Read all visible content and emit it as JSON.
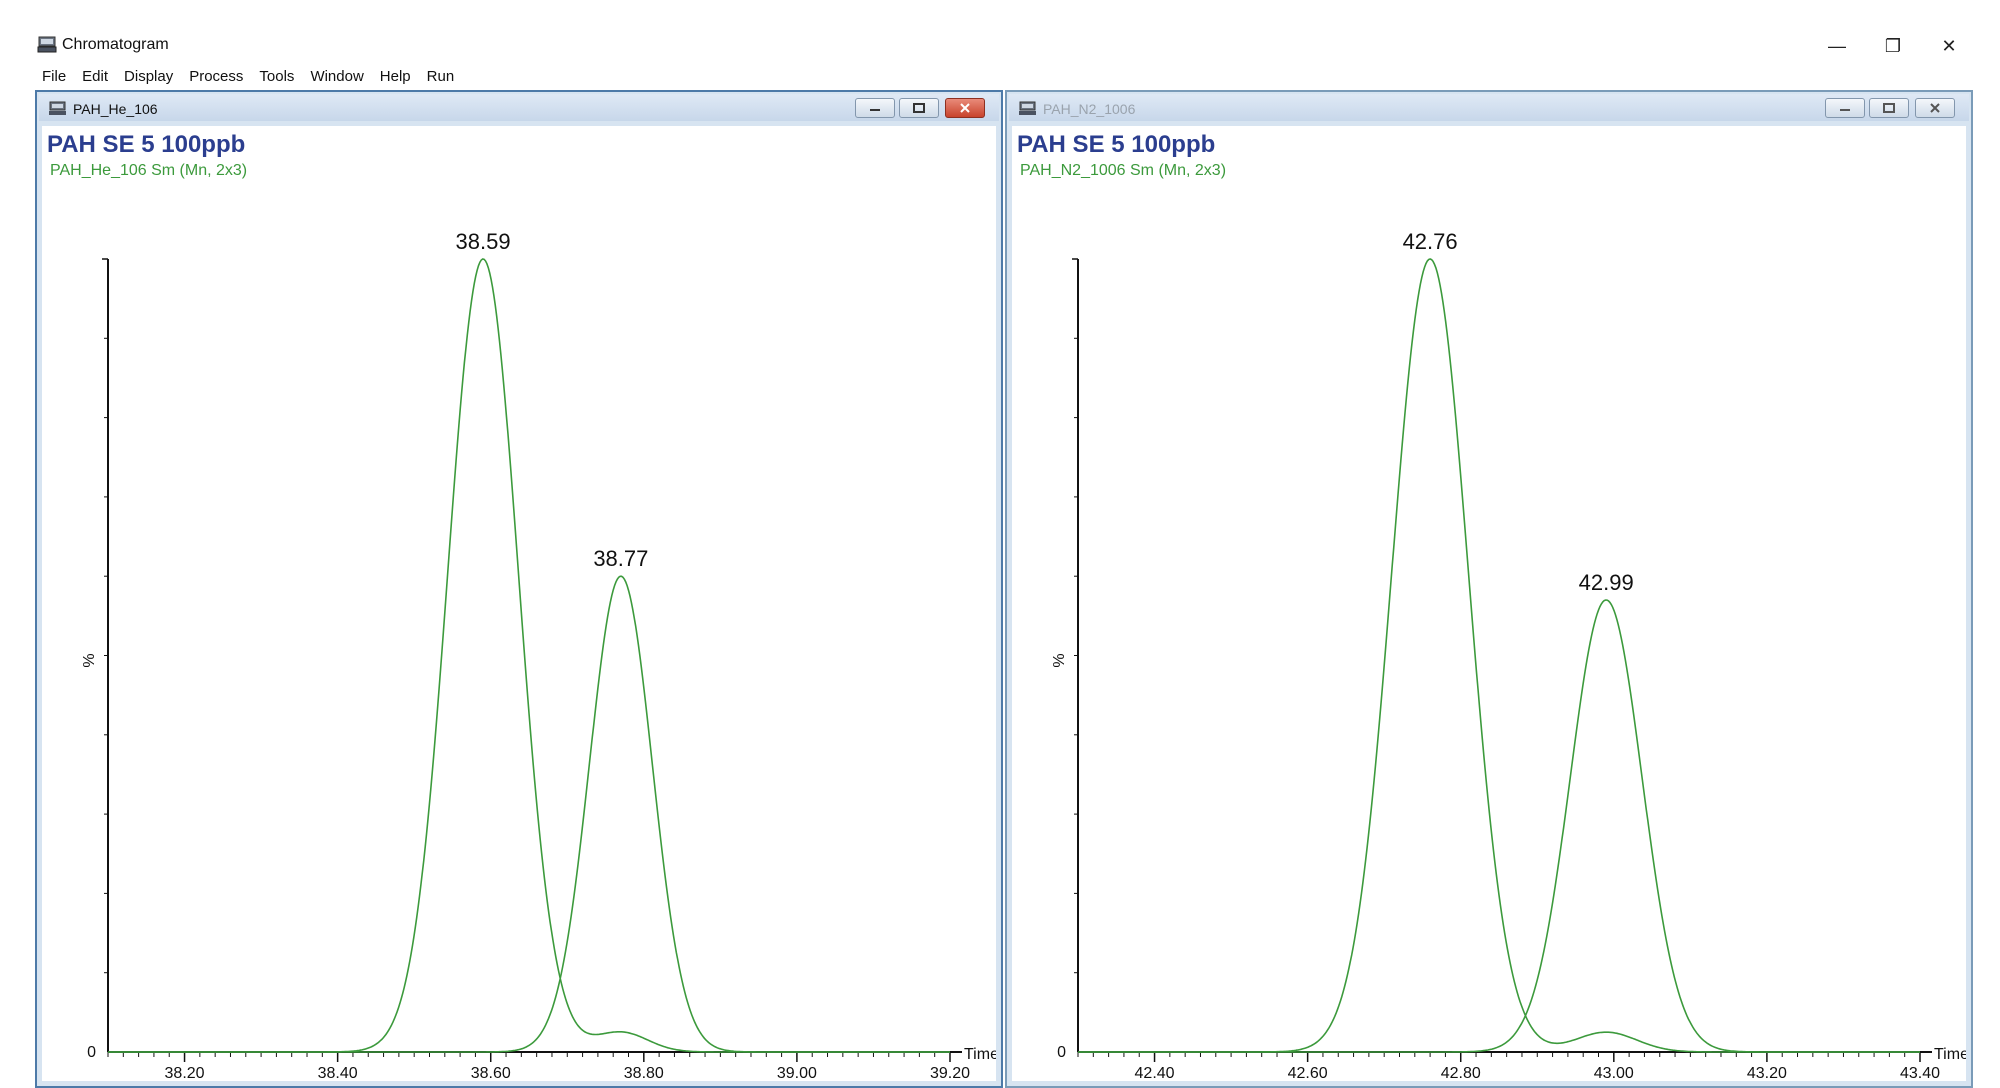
{
  "app": {
    "title": "Chromatogram",
    "window_controls": {
      "minimize": "—",
      "restore": "❐",
      "close": "✕"
    },
    "icon": "chromatogram-app-icon"
  },
  "menu": [
    "File",
    "Edit",
    "Display",
    "Process",
    "Tools",
    "Window",
    "Help",
    "Run"
  ],
  "windows": [
    {
      "name": "PAH_He_106",
      "active": true,
      "sample_title": "PAH SE 5 100ppb",
      "trace_label": "PAH_He_106 Sm (Mn, 2x3)",
      "y_axis_label": "%",
      "y_zero_label": "0",
      "x_axis_label": "Time"
    },
    {
      "name": "PAH_N2_1006",
      "active": false,
      "sample_title": "PAH SE 5 100ppb",
      "trace_label": "PAH_N2_1006 Sm (Mn, 2x3)",
      "y_axis_label": "%",
      "y_zero_label": "0",
      "x_axis_label": "Time"
    }
  ],
  "chart_data": [
    {
      "type": "line",
      "title": "PAH SE 5 100ppb",
      "series": [
        {
          "name": "PAH_He_106 Sm (Mn, 2x3)"
        }
      ],
      "xlabel": "Time",
      "ylabel": "%",
      "xlim": [
        38.1,
        39.2
      ],
      "ylim": [
        0,
        100
      ],
      "x_ticks": [
        "38.20",
        "38.40",
        "38.60",
        "38.80",
        "39.00",
        "39.20"
      ],
      "x_tick_values": [
        38.2,
        38.4,
        38.6,
        38.8,
        39.0,
        39.2
      ],
      "peaks": [
        {
          "label": "38.59",
          "rt": 38.59,
          "height": 100,
          "sigma": 0.046
        },
        {
          "label": "38.77",
          "rt": 38.77,
          "height": 60,
          "sigma": 0.041
        }
      ],
      "minor_bump": {
        "rt": 38.77,
        "height": 2.5,
        "sigma": 0.035
      },
      "color": "#3c9a3c"
    },
    {
      "type": "line",
      "title": "PAH SE 5 100ppb",
      "series": [
        {
          "name": "PAH_N2_1006 Sm (Mn, 2x3)"
        }
      ],
      "xlabel": "Time",
      "ylabel": "%",
      "xlim": [
        42.3,
        43.4
      ],
      "ylim": [
        0,
        100
      ],
      "x_ticks": [
        "42.40",
        "42.60",
        "42.80",
        "43.00",
        "43.20",
        "43.40"
      ],
      "x_tick_values": [
        42.4,
        42.6,
        42.8,
        43.0,
        43.2,
        43.4
      ],
      "peaks": [
        {
          "label": "42.76",
          "rt": 42.76,
          "height": 100,
          "sigma": 0.05
        },
        {
          "label": "42.99",
          "rt": 42.99,
          "height": 57,
          "sigma": 0.047
        }
      ],
      "minor_bump": {
        "rt": 42.99,
        "height": 2.5,
        "sigma": 0.04
      },
      "color": "#3c9a3c"
    }
  ]
}
